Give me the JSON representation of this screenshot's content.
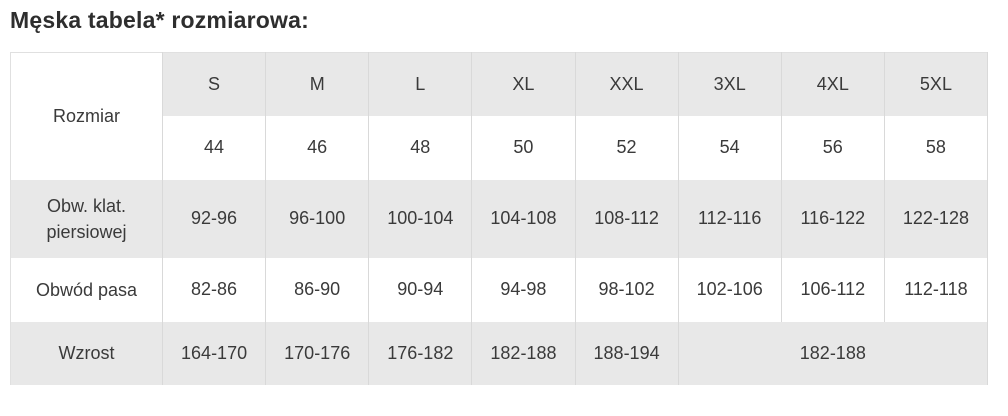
{
  "page": {
    "title": "Męska tabela* rozmiarowa:"
  },
  "colors": {
    "cell_gray": "#e8e8e8",
    "divider": "#d9d9d9",
    "text": "#333333",
    "background": "#ffffff"
  },
  "size_table": {
    "corner_label": "Rozmiar",
    "size_labels": [
      "S",
      "M",
      "L",
      "XL",
      "XXL",
      "3XL",
      "4XL",
      "5XL"
    ],
    "numeric_sizes": [
      "44",
      "46",
      "48",
      "50",
      "52",
      "54",
      "56",
      "58"
    ],
    "rows": [
      {
        "label": "Obw. klat. piersiowej",
        "values": [
          "92-96",
          "96-100",
          "100-104",
          "104-108",
          "108-112",
          "112-116",
          "116-122",
          "122-128"
        ]
      },
      {
        "label": "Obwód pasa",
        "values": [
          "82-86",
          "86-90",
          "90-94",
          "94-98",
          "98-102",
          "102-106",
          "106-112",
          "112-118"
        ]
      },
      {
        "label": "Wzrost",
        "values": [
          "164-170",
          "170-176",
          "176-182",
          "182-188",
          "188-194"
        ],
        "merged_value": "182-188"
      }
    ]
  }
}
